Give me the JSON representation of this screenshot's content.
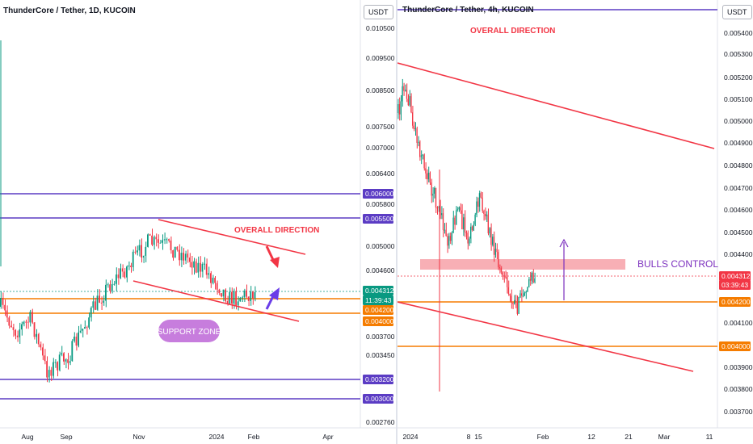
{
  "chart_data": [
    {
      "id": "left",
      "type": "candlestick",
      "title": "ThunderCore / Tether, 1D, KUCOIN",
      "currency": "USDT",
      "y_axis_ticks": [
        "0.010500",
        "0.009500",
        "0.008500",
        "0.007500",
        "0.007000",
        "0.006400",
        "0.005800",
        "0.005000",
        "0.004600",
        "0.003700",
        "0.003450",
        "0.002760"
      ],
      "x_axis_ticks": [
        "Aug",
        "Sep",
        "Nov",
        "2024",
        "Feb",
        "Apr"
      ],
      "price_tags": [
        {
          "label": "0.006000",
          "color": "#5b3cc4"
        },
        {
          "label": "0.005500",
          "color": "#5b3cc4"
        },
        {
          "label": "0.004312",
          "color": "#089981"
        },
        {
          "label": "11:39:43",
          "color": "#089981"
        },
        {
          "label": "0.004200",
          "color": "#f57c00"
        },
        {
          "label": "0.004000",
          "color": "#f57c00"
        },
        {
          "label": "0.003200",
          "color": "#5b3cc4"
        },
        {
          "label": "0.003000",
          "color": "#5b3cc4"
        }
      ],
      "horizontal_levels": [
        0.006,
        0.0055,
        0.0042,
        0.004,
        0.0032,
        0.003
      ],
      "annotations": [
        "OVERALL DIRECTION",
        "SUPPORT ZONE"
      ],
      "colors": {
        "up": "#089981",
        "down": "#f23645",
        "level_purple": "#5b3cc4",
        "level_orange": "#f57c00",
        "trend_red": "#f23645",
        "arrow_purple": "#6a3de8"
      }
    },
    {
      "id": "right",
      "type": "candlestick",
      "title": "ThunderCore / Tether, 4h, KUCOIN",
      "currency": "USDT",
      "y_axis_ticks": [
        "0.005400",
        "0.005300",
        "0.005200",
        "0.005100",
        "0.005000",
        "0.004900",
        "0.004800",
        "0.004700",
        "0.004600",
        "0.004500",
        "0.004400",
        "0.004100",
        "0.003900",
        "0.003800",
        "0.003700"
      ],
      "x_axis_ticks": [
        "2024",
        "8",
        "15",
        "Feb",
        "12",
        "21",
        "Mar",
        "11"
      ],
      "price_tags": [
        {
          "label": "0.004312",
          "color": "#f23645"
        },
        {
          "label": "03:39:43",
          "color": "#f23645"
        },
        {
          "label": "0.004200",
          "color": "#f57c00"
        },
        {
          "label": "0.004000",
          "color": "#f57c00"
        }
      ],
      "horizontal_levels": [
        0.0042,
        0.004
      ],
      "annotations": [
        "OVERALL DIRECTION",
        "BULLS CONTROL"
      ],
      "colors": {
        "up": "#089981",
        "down": "#f23645",
        "zone": "#f7a1a8",
        "level_orange": "#f57c00",
        "trend_red": "#f23645",
        "arrow_purple": "#7b2fbe",
        "label_purple": "#7b2fbe"
      }
    }
  ]
}
